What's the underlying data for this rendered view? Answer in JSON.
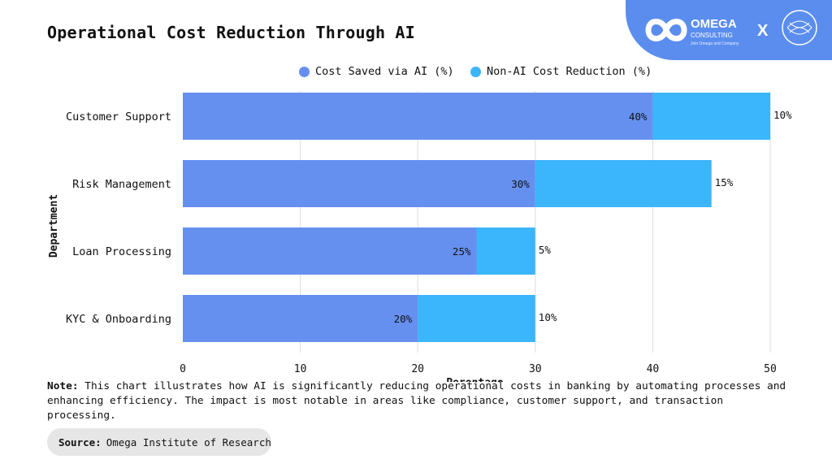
{
  "page": {
    "title": "Operational Cost Reduction Through AI",
    "note_label": "Note:",
    "note_text": "This chart illustrates how AI is significantly reducing operational costs in banking by automating processes and enhancing efficiency. The impact is most notable in areas like compliance, customer support, and transaction processing.",
    "source_label": "Source:",
    "source_text": "Omega Institute of Research"
  },
  "brand": {
    "name": "OMEGA",
    "sub": "CONSULTING",
    "tagline": "Join Omega and Company",
    "cross": "X",
    "bg_color": "#5b8def"
  },
  "chart_data": {
    "type": "bar",
    "orientation": "horizontal",
    "stacked": true,
    "title": "",
    "categories": [
      "Customer Support",
      "Risk Management",
      "Loan Processing",
      "KYC & Onboarding"
    ],
    "series": [
      {
        "name": "Cost Saved via AI (%)",
        "values": [
          40,
          30,
          25,
          20
        ],
        "labels": [
          "40%",
          "30%",
          "25%",
          "20%"
        ],
        "color": "#6690f0"
      },
      {
        "name": "Non-AI Cost Reduction (%)",
        "values": [
          10,
          15,
          5,
          10
        ],
        "labels": [
          "10%",
          "15%",
          "5%",
          "10%"
        ],
        "color": "#3bb5fb"
      }
    ],
    "xlabel": "Perentage",
    "ylabel": "Department",
    "xlim": [
      0,
      50
    ],
    "xticks": [
      0,
      10,
      20,
      30,
      40,
      50
    ],
    "grid": true,
    "legend_position": "top-center"
  }
}
